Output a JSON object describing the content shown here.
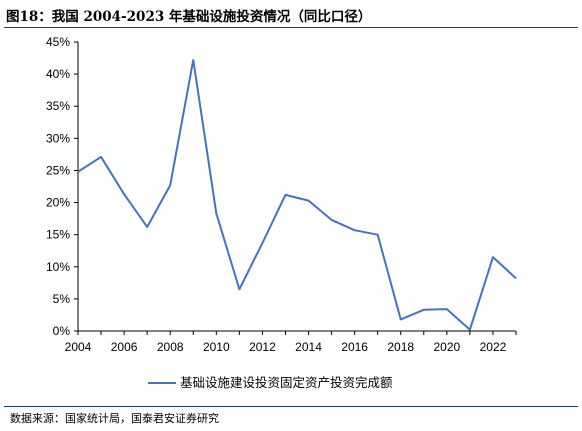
{
  "title": "图18：我国 2004-2023 年基础设施投资情况（同比口径）",
  "source": "数据来源：国家统计局，国泰君安证券研究",
  "chart_data": {
    "type": "line",
    "x": [
      2004,
      2005,
      2006,
      2007,
      2008,
      2009,
      2010,
      2011,
      2012,
      2013,
      2014,
      2015,
      2016,
      2017,
      2018,
      2019,
      2020,
      2021,
      2022,
      2023
    ],
    "series": [
      {
        "name": "基础设施建设投资固定资产投资完成额",
        "values": [
          24.8,
          27.1,
          21.3,
          16.2,
          22.7,
          42.2,
          18.3,
          6.5,
          13.7,
          21.2,
          20.3,
          17.3,
          15.7,
          15.0,
          1.8,
          3.3,
          3.4,
          0.2,
          11.5,
          8.2
        ]
      }
    ],
    "xticks": [
      "2004",
      "2006",
      "2008",
      "2010",
      "2012",
      "2014",
      "2016",
      "2018",
      "2020",
      "2022"
    ],
    "yticks": [
      "0%",
      "5%",
      "10%",
      "15%",
      "20%",
      "25%",
      "30%",
      "35%",
      "40%",
      "45%"
    ],
    "ylim": [
      0,
      45
    ],
    "xlim": [
      2004,
      2023
    ],
    "grid": false,
    "legend_position": "bottom",
    "line_color": "#4472c4"
  }
}
